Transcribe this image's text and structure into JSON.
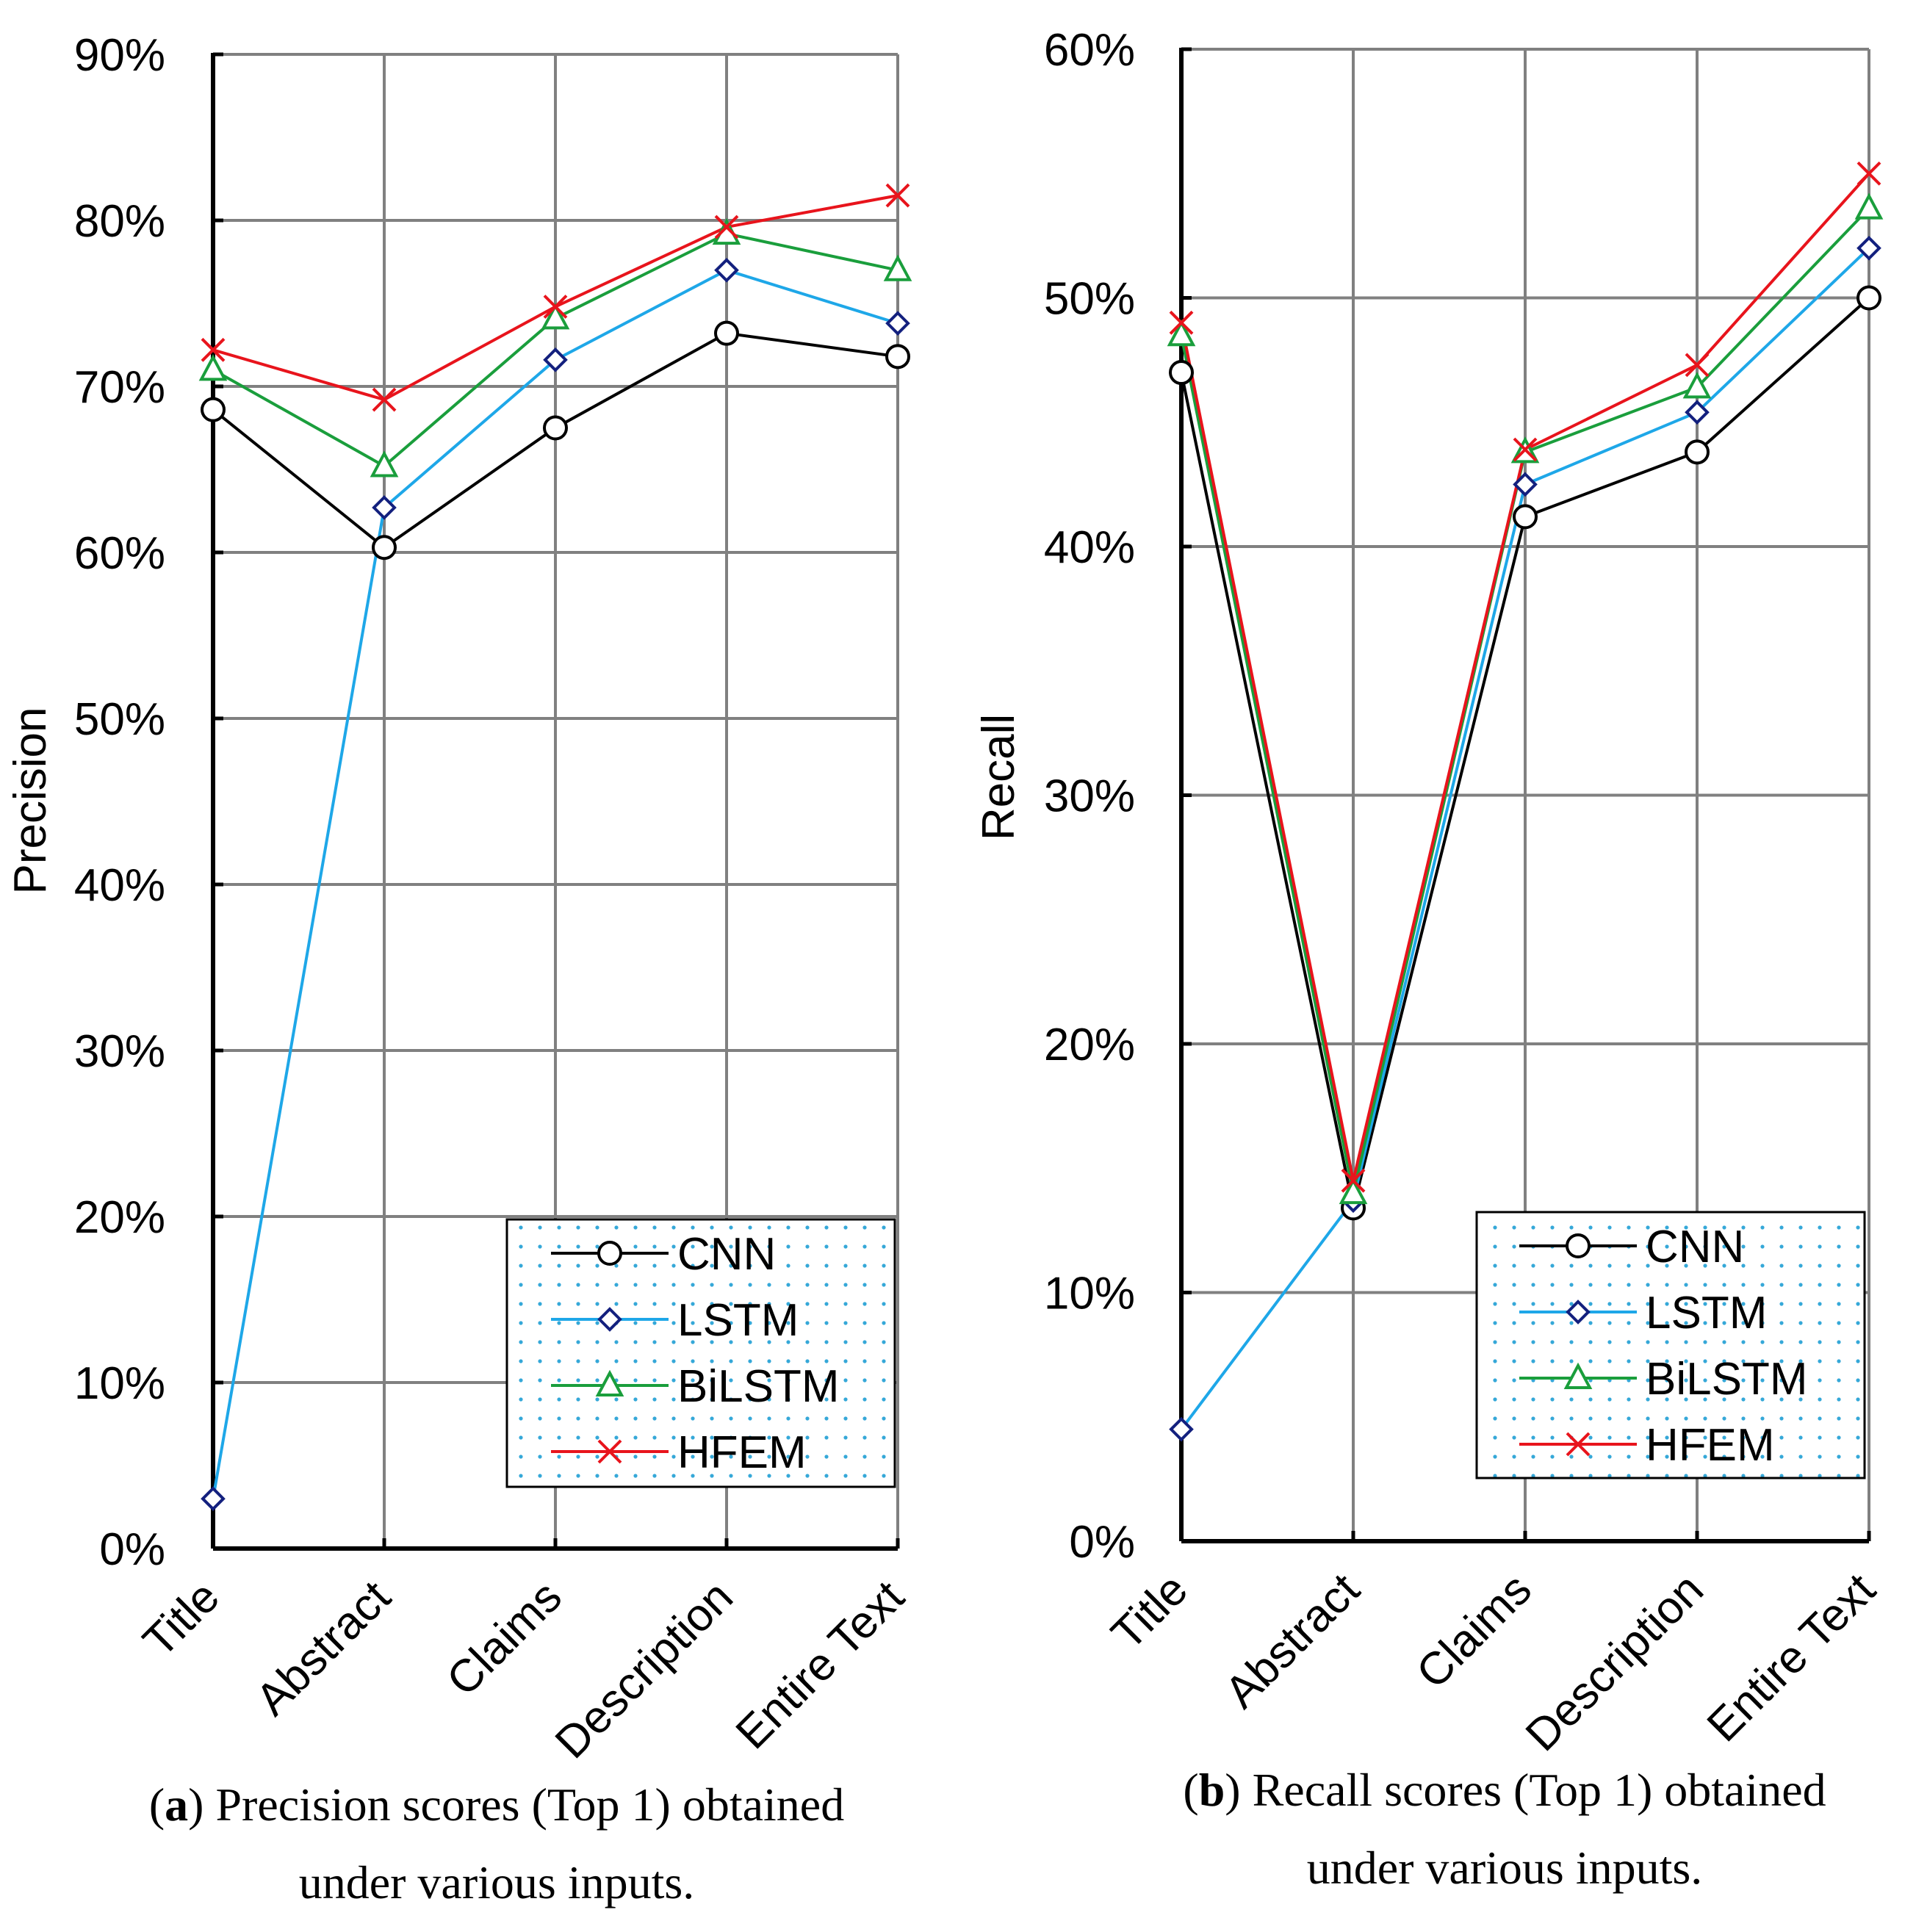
{
  "chart_data": [
    {
      "type": "line",
      "categories": [
        "Title",
        "Abstract",
        "Claims",
        "Description",
        "Entire Text"
      ],
      "ylabel": "Precision",
      "ylim": [
        0,
        90
      ],
      "yticks": [
        "0%",
        "10%",
        "20%",
        "30%",
        "40%",
        "50%",
        "60%",
        "70%",
        "80%",
        "90%"
      ],
      "legend": "bottom-right",
      "grid": true,
      "series": [
        {
          "name": "CNN",
          "color": "#000000",
          "marker": "circle",
          "values": [
            68.6,
            60.3,
            67.5,
            73.2,
            71.8
          ]
        },
        {
          "name": "LSTM",
          "color": "#1ea7e8",
          "marker": "diamond",
          "values": [
            3.0,
            62.7,
            71.6,
            77.0,
            73.8
          ]
        },
        {
          "name": "BiLSTM",
          "color": "#1a9e3c",
          "marker": "triangle",
          "values": [
            71.0,
            65.2,
            74.1,
            79.2,
            77.0
          ]
        },
        {
          "name": "HFEM",
          "color": "#e8141c",
          "marker": "x",
          "values": [
            72.2,
            69.2,
            74.8,
            79.6,
            81.5
          ]
        }
      ],
      "caption_label": "a",
      "caption_line1": ") Precision scores (Top 1) obtained",
      "caption_line2": "under various inputs."
    },
    {
      "type": "line",
      "categories": [
        "Title",
        "Abstract",
        "Claims",
        "Description",
        "Entire Text"
      ],
      "ylabel": "Recall",
      "ylim": [
        0,
        60
      ],
      "yticks": [
        "0%",
        "10%",
        "20%",
        "30%",
        "40%",
        "50%",
        "60%"
      ],
      "legend": "bottom-right",
      "grid": true,
      "series": [
        {
          "name": "CNN",
          "color": "#000000",
          "marker": "circle",
          "values": [
            47.0,
            13.4,
            41.2,
            43.8,
            50.0
          ]
        },
        {
          "name": "LSTM",
          "color": "#1ea7e8",
          "marker": "diamond",
          "values": [
            4.5,
            13.7,
            42.5,
            45.4,
            52.0
          ]
        },
        {
          "name": "BiLSTM",
          "color": "#1a9e3c",
          "marker": "triangle",
          "values": [
            48.5,
            14.0,
            43.8,
            46.4,
            53.6
          ]
        },
        {
          "name": "HFEM",
          "color": "#e8141c",
          "marker": "x",
          "values": [
            49.0,
            14.5,
            43.9,
            47.3,
            55.0
          ]
        }
      ],
      "caption_label": "b",
      "caption_line1": ") Recall scores (Top 1) obtained",
      "caption_line2": "under various inputs."
    }
  ]
}
